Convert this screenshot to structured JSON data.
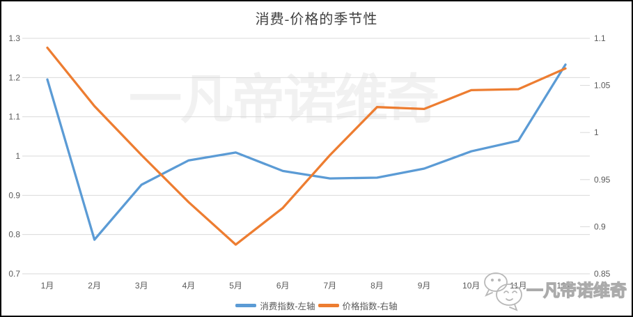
{
  "title": "消费-价格的季节性",
  "watermark": {
    "center_text": "一凡帝诺维奇",
    "corner_text": "一凡帝诺维奇"
  },
  "colors": {
    "series_blue": "#5B9BD5",
    "series_orange": "#ED7D31",
    "gridline": "#D9D9D9",
    "axis_text": "#595959",
    "title_text": "#3F3F3F",
    "border": "#000000",
    "watermark_gray": "#F1F1F1"
  },
  "chart_data": {
    "type": "line",
    "title": "消费-价格的季节性",
    "categories": [
      "1月",
      "2月",
      "3月",
      "4月",
      "5月",
      "6月",
      "7月",
      "8月",
      "9月",
      "10月",
      "11月",
      "12月"
    ],
    "series": [
      {
        "name": "消费指数-左轴",
        "axis": "left",
        "color": "#5B9BD5",
        "values": [
          1.195,
          0.787,
          0.927,
          0.989,
          1.009,
          0.962,
          0.943,
          0.945,
          0.968,
          1.012,
          1.039,
          1.233
        ]
      },
      {
        "name": "价格指数-右轴",
        "axis": "right",
        "color": "#ED7D31",
        "values": [
          1.09,
          1.028,
          0.976,
          0.926,
          0.881,
          0.92,
          0.976,
          1.027,
          1.025,
          1.045,
          1.046,
          1.068
        ]
      }
    ],
    "left_axis": {
      "min": 0.7,
      "max": 1.3,
      "ticks": [
        1.3,
        1.2,
        1.1,
        1.0,
        0.9,
        0.8,
        0.7
      ]
    },
    "right_axis": {
      "min": 0.85,
      "max": 1.1,
      "ticks": [
        1.1,
        1.05,
        1.0,
        0.95,
        0.9,
        0.85
      ]
    },
    "grid": "horizontal",
    "legend_position": "bottom"
  }
}
